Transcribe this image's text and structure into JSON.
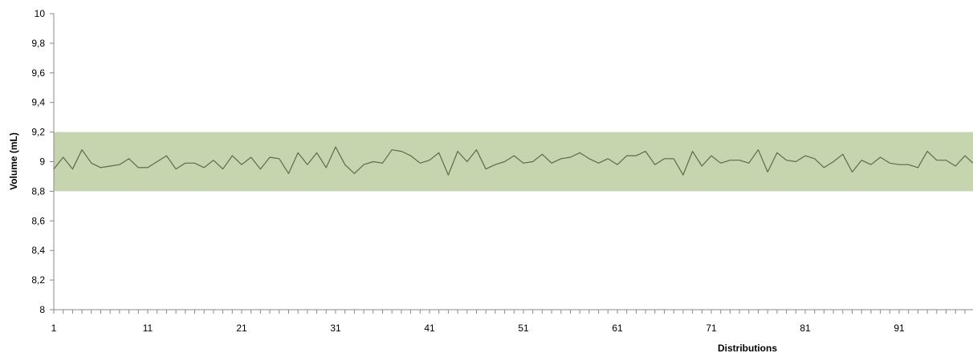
{
  "chart_data": {
    "type": "line",
    "title": "",
    "xlabel": "Distributions",
    "ylabel": "Volume (mL)",
    "ylim": [
      8,
      10
    ],
    "yticks": [
      8,
      8.2,
      8.4,
      8.6,
      8.8,
      9,
      9.2,
      9.4,
      9.6,
      9.8,
      10
    ],
    "ytick_labels": [
      "8",
      "8,2",
      "8,4",
      "8,6",
      "8,8",
      "9",
      "9,2",
      "9,4",
      "9,6",
      "9,8",
      "10"
    ],
    "xlim": [
      1,
      100
    ],
    "xticks": [
      1,
      11,
      21,
      31,
      41,
      51,
      61,
      71,
      81,
      91
    ],
    "xtick_labels": [
      "1",
      "11",
      "21",
      "31",
      "41",
      "51",
      "61",
      "71",
      "81",
      "91"
    ],
    "band": {
      "low": 8.8,
      "high": 9.2,
      "color": "#c6d5ae"
    },
    "line_color": "#5e6a4c",
    "grid": false,
    "legend": "none",
    "series": [
      {
        "values": [
          8.95,
          9.03,
          8.95,
          9.08,
          8.99,
          8.96,
          8.97,
          8.98,
          9.02,
          8.96,
          8.96,
          9.0,
          9.04,
          8.95,
          8.99,
          8.99,
          8.96,
          9.01,
          8.95,
          9.04,
          8.98,
          9.03,
          8.95,
          9.03,
          9.02,
          8.92,
          9.06,
          8.98,
          9.06,
          8.96,
          9.1,
          8.98,
          8.92,
          8.98,
          9.0,
          8.99,
          9.08,
          9.07,
          9.04,
          8.99,
          9.01,
          9.06,
          8.91,
          9.07,
          9.0,
          9.08,
          8.95,
          8.98,
          9.0,
          9.04,
          8.99,
          9.0,
          9.05,
          8.99,
          9.02,
          9.03,
          9.06,
          9.02,
          8.99,
          9.02,
          8.98,
          9.04,
          9.04,
          9.07,
          8.98,
          9.02,
          9.02,
          8.91,
          9.07,
          8.97,
          9.04,
          8.99,
          9.01,
          9.01,
          8.99,
          9.08,
          8.93,
          9.06,
          9.01,
          9.0,
          9.04,
          9.02,
          8.96,
          9.0,
          9.05,
          8.93,
          9.01,
          8.98,
          9.03,
          8.99,
          8.98,
          8.98,
          8.96,
          9.07,
          9.01,
          9.01,
          8.97,
          9.04,
          8.99
        ]
      }
    ]
  }
}
